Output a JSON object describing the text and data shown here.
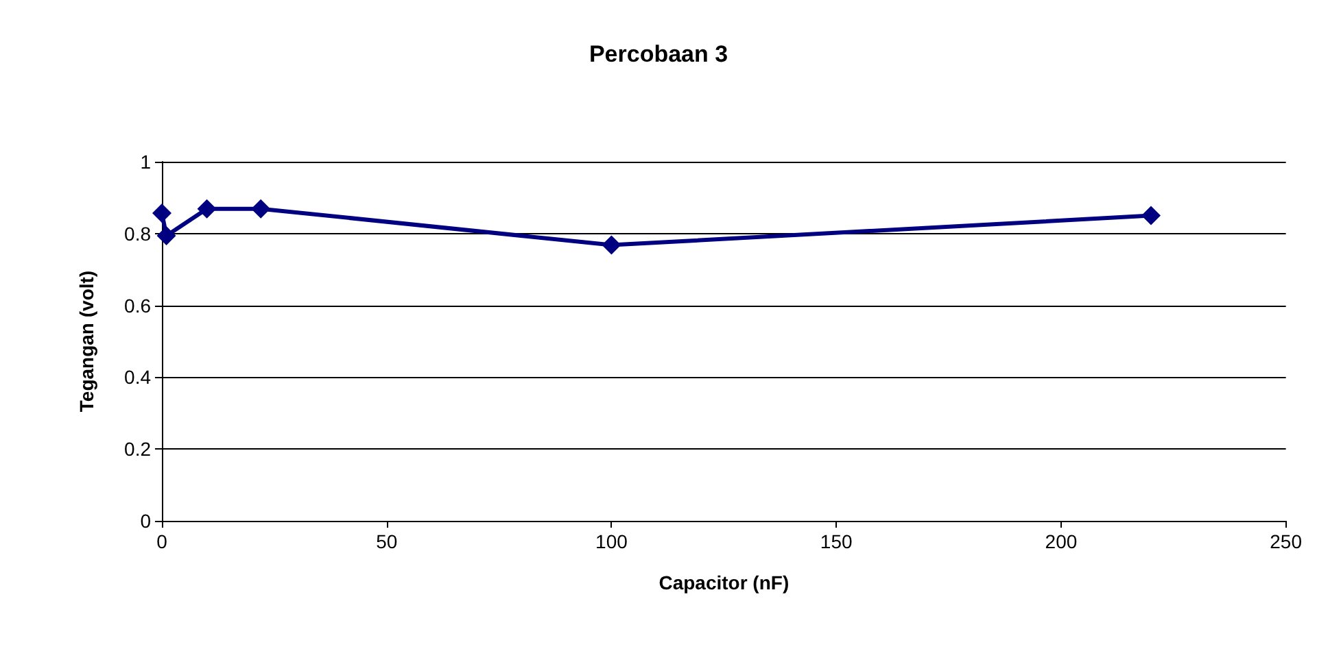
{
  "chart_data": {
    "type": "line",
    "title": "Percobaan 3",
    "xlabel": "Capacitor (nF)",
    "ylabel": "Tegangan (volt)",
    "x": [
      0,
      1,
      10,
      22,
      100,
      220
    ],
    "series": [
      {
        "color": "#000080",
        "values": [
          0.857,
          0.794,
          0.869,
          0.869,
          0.768,
          0.85
        ]
      }
    ],
    "xlim": [
      0,
      250
    ],
    "xticks": [
      0,
      50,
      100,
      150,
      200,
      250
    ],
    "ylim": [
      0,
      1
    ],
    "yticks": [
      0,
      0.2,
      0.4,
      0.6,
      0.8,
      1
    ],
    "grid": "y",
    "marker": "diamond",
    "line_style": "solid"
  }
}
